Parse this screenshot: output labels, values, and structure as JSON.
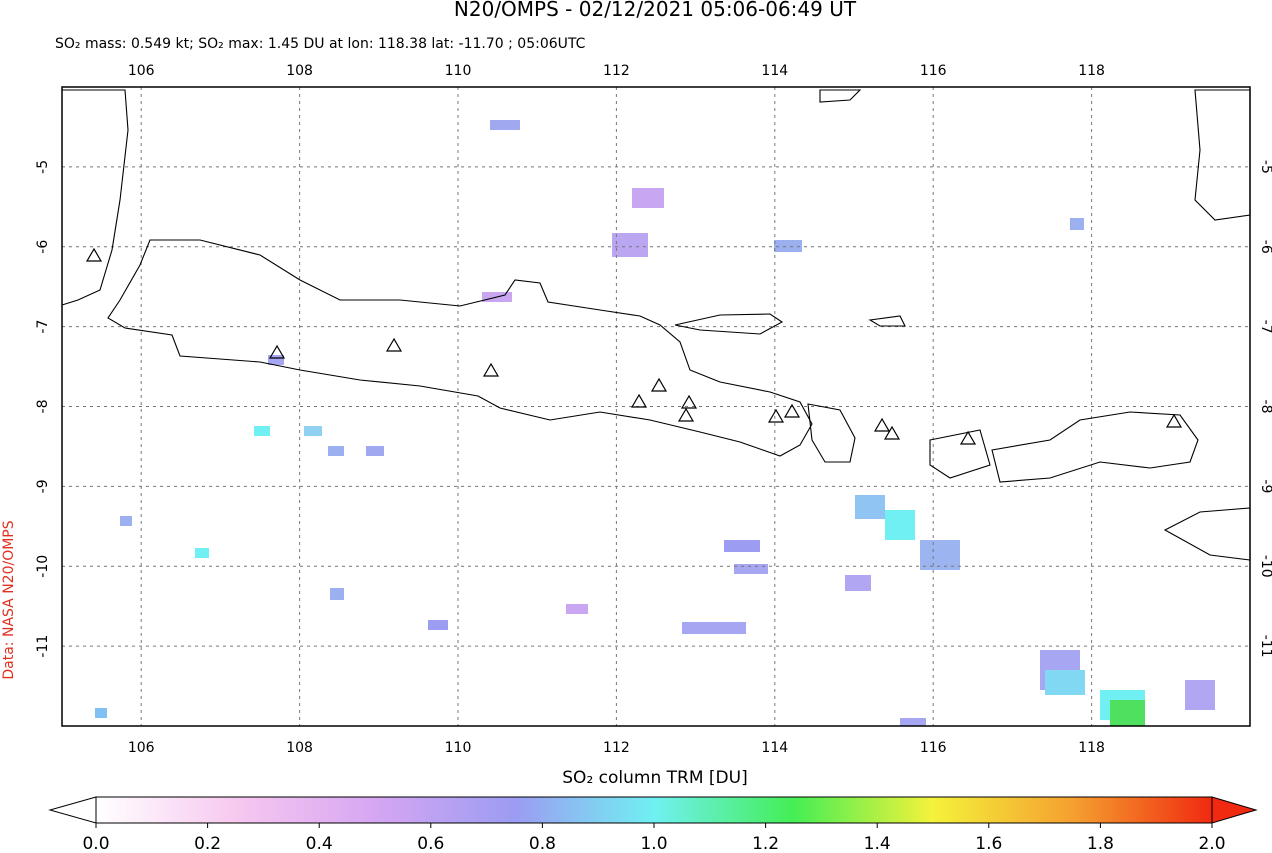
{
  "header": {
    "title": "N20/OMPS - 02/12/2021 05:06-06:49 UT",
    "subtitle": "SO₂ mass: 0.549 kt; SO₂ max: 1.45 DU at lon: 118.38 lat: -11.70 ; 05:06UTC"
  },
  "chart_data": {
    "type": "map",
    "xlim": [
      105,
      120
    ],
    "ylim": [
      -12,
      -4
    ],
    "xticks": [
      106,
      108,
      110,
      112,
      114,
      116,
      118
    ],
    "yticks": [
      -5,
      -6,
      -7,
      -8,
      -9,
      -10,
      -11
    ],
    "grid": true
  },
  "colorbar": {
    "label": "SO₂ column TRM [DU]",
    "lim": [
      0,
      2
    ],
    "ticks": [
      {
        "value": 0,
        "label": "0.0"
      },
      {
        "value": 0.2,
        "label": "0.2"
      },
      {
        "value": 0.4,
        "label": "0.4"
      },
      {
        "value": 0.6,
        "label": "0.6"
      },
      {
        "value": 0.8,
        "label": "0.8"
      },
      {
        "value": 1,
        "label": "1.0"
      },
      {
        "value": 1.2,
        "label": "1.2"
      },
      {
        "value": 1.4,
        "label": "1.4"
      },
      {
        "value": 1.6,
        "label": "1.6"
      },
      {
        "value": 1.8,
        "label": "1.8"
      },
      {
        "value": 2,
        "label": "2.0"
      }
    ],
    "colors": [
      "#ffffff",
      "#f7c8f0",
      "#d6a6f2",
      "#9c9cf2",
      "#70f0f2",
      "#44ee55",
      "#f4f23a",
      "#f5a030",
      "#f02a10"
    ]
  },
  "credit": "Data: NASA N20/OMPS"
}
